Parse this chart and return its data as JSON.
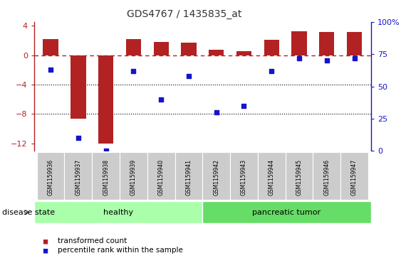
{
  "title": "GDS4767 / 1435835_at",
  "samples": [
    "GSM1159936",
    "GSM1159937",
    "GSM1159938",
    "GSM1159939",
    "GSM1159940",
    "GSM1159941",
    "GSM1159942",
    "GSM1159943",
    "GSM1159944",
    "GSM1159945",
    "GSM1159946",
    "GSM1159947"
  ],
  "bar_values": [
    2.2,
    -8.6,
    -12.0,
    2.2,
    1.8,
    1.7,
    0.7,
    0.5,
    2.1,
    3.2,
    3.1,
    3.1
  ],
  "percentile_values": [
    63,
    10,
    0,
    62,
    40,
    58,
    30,
    35,
    62,
    72,
    70,
    72
  ],
  "bar_color": "#B22222",
  "dot_color": "#1414CC",
  "ref_line_color": "#B22222",
  "grid_color": "#000000",
  "ylim_left": [
    -13,
    4.5
  ],
  "ylim_right": [
    0,
    100
  ],
  "yticks_left": [
    4,
    0,
    -4,
    -8,
    -12
  ],
  "yticks_right": [
    0,
    25,
    50,
    75,
    100
  ],
  "healthy_label": "healthy",
  "tumor_label": "pancreatic tumor",
  "disease_label": "disease state",
  "legend_bar": "transformed count",
  "legend_dot": "percentile rank within the sample",
  "healthy_color": "#AAFFAA",
  "tumor_color": "#66DD66",
  "healthy_count": 6,
  "tumor_count": 6,
  "bar_width": 0.55,
  "tick_label_bg": "#CCCCCC",
  "border_color": "#AAAAAA"
}
